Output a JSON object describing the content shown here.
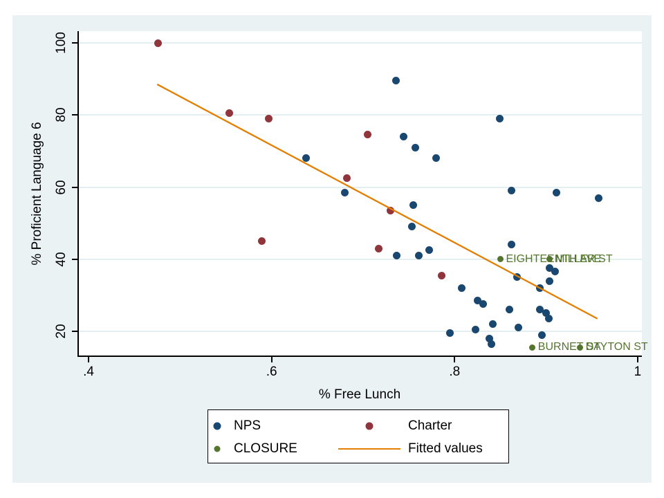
{
  "colors": {
    "nps": "#1a476f",
    "charter": "#90353b",
    "closure": "#55752f",
    "fitted": "#e37e00",
    "graph_background": "#eaf2f3",
    "plot_background": "#ffffff",
    "gridline": "#e3eef1"
  },
  "legend": {
    "items": [
      {
        "label": "NPS",
        "swatch": "dot",
        "color": "#1a476f"
      },
      {
        "label": "Charter",
        "swatch": "dot",
        "color": "#90353b"
      },
      {
        "label": "CLOSURE",
        "swatch": "dot",
        "color": "#55752f"
      },
      {
        "label": "Fitted values",
        "swatch": "line",
        "color": "#e37e00"
      }
    ]
  },
  "chart_data": {
    "type": "scatter",
    "title": "",
    "xlabel": "% Free Lunch",
    "ylabel": "% Proficient Language 6",
    "xlim": [
      0.39,
      1.0
    ],
    "ylim": [
      13,
      103
    ],
    "grid": true,
    "legend_position": "bottom-center",
    "x_ticks": [
      {
        "label": ".4",
        "value": 0.4
      },
      {
        "label": ".6",
        "value": 0.6
      },
      {
        "label": ".8",
        "value": 0.8
      },
      {
        "label": "1",
        "value": 1.0
      }
    ],
    "y_ticks": [
      {
        "label": "20",
        "value": 20
      },
      {
        "label": "40",
        "value": 40
      },
      {
        "label": "60",
        "value": 60
      },
      {
        "label": "80",
        "value": 80
      },
      {
        "label": "100",
        "value": 100
      }
    ],
    "series": [
      {
        "name": "NPS",
        "type": "scatter",
        "color": "#1a476f",
        "points": [
          [
            0.736,
            89.5
          ],
          [
            0.849,
            79
          ],
          [
            0.744,
            74
          ],
          [
            0.757,
            71
          ],
          [
            0.78,
            68
          ],
          [
            0.638,
            68
          ],
          [
            0.68,
            58.5
          ],
          [
            0.862,
            59
          ],
          [
            0.911,
            58.5
          ],
          [
            0.957,
            57
          ],
          [
            0.755,
            55
          ],
          [
            0.753,
            49
          ],
          [
            0.737,
            41
          ],
          [
            0.761,
            41
          ],
          [
            0.772,
            42.5
          ],
          [
            0.862,
            44
          ],
          [
            0.868,
            35
          ],
          [
            0.904,
            37.5
          ],
          [
            0.91,
            36.5
          ],
          [
            0.904,
            34
          ],
          [
            0.893,
            32
          ],
          [
            0.808,
            32
          ],
          [
            0.825,
            28.5
          ],
          [
            0.831,
            27.5
          ],
          [
            0.86,
            26
          ],
          [
            0.893,
            26
          ],
          [
            0.9,
            25
          ],
          [
            0.903,
            23.5
          ],
          [
            0.842,
            22
          ],
          [
            0.87,
            21
          ],
          [
            0.795,
            19.5
          ],
          [
            0.823,
            20.5
          ],
          [
            0.895,
            19
          ],
          [
            0.838,
            18
          ],
          [
            0.84,
            16.5
          ]
        ]
      },
      {
        "name": "Charter",
        "type": "scatter",
        "color": "#90353b",
        "points": [
          [
            0.476,
            100
          ],
          [
            0.554,
            80.5
          ],
          [
            0.597,
            79
          ],
          [
            0.705,
            74.5
          ],
          [
            0.682,
            62.5
          ],
          [
            0.73,
            53.5
          ],
          [
            0.589,
            45
          ],
          [
            0.717,
            43
          ],
          [
            0.786,
            35.5
          ]
        ]
      },
      {
        "name": "CLOSURE",
        "type": "scatter",
        "color": "#55752f",
        "points": [
          [
            0.85,
            40,
            "EIGHTEENTH AVE"
          ],
          [
            0.904,
            40,
            "MILLER ST"
          ],
          [
            0.885,
            15.5,
            "BURNET ST"
          ],
          [
            0.937,
            15.5,
            "DAYTON ST"
          ]
        ]
      },
      {
        "name": "Fitted values",
        "type": "line",
        "color": "#e37e00",
        "points": [
          [
            0.475,
            88.5
          ],
          [
            0.956,
            23.5
          ]
        ]
      }
    ]
  }
}
